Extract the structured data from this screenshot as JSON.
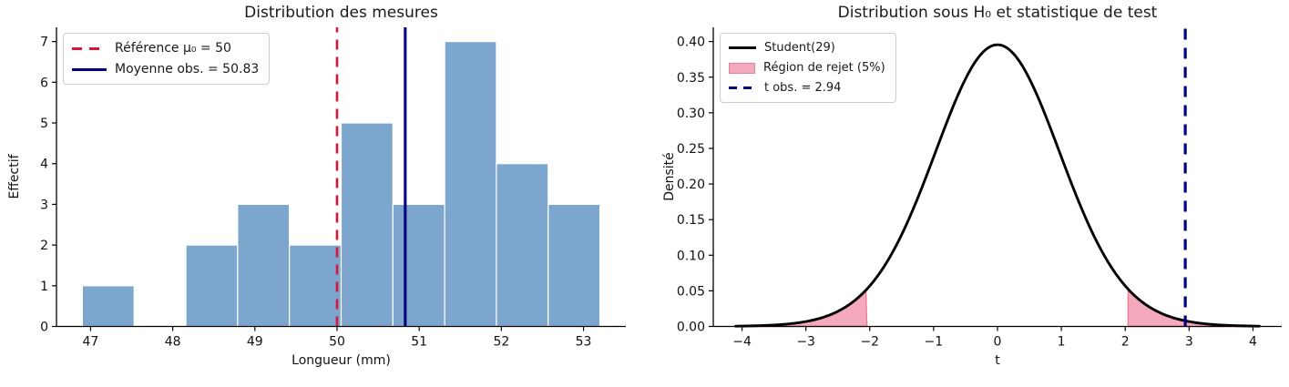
{
  "figure": {
    "background": "#ffffff"
  },
  "chart_data": [
    {
      "type": "bar",
      "subtype": "histogram",
      "title": "Distribution des mesures",
      "xlabel": "Longueur (mm)",
      "ylabel": "Effectif",
      "bins": {
        "start": 46.9,
        "width": 0.63
      },
      "counts": [
        1,
        0,
        2,
        3,
        2,
        5,
        3,
        7,
        4,
        3
      ],
      "xticks": [
        {
          "v": 47,
          "label": "47"
        },
        {
          "v": 48,
          "label": "48"
        },
        {
          "v": 49,
          "label": "49"
        },
        {
          "v": 50,
          "label": "50"
        },
        {
          "v": 51,
          "label": "51"
        },
        {
          "v": 52,
          "label": "52"
        },
        {
          "v": 53,
          "label": "53"
        }
      ],
      "yticks": [
        {
          "v": 0,
          "label": "0"
        },
        {
          "v": 1,
          "label": "1"
        },
        {
          "v": 2,
          "label": "2"
        },
        {
          "v": 3,
          "label": "3"
        },
        {
          "v": 4,
          "label": "4"
        },
        {
          "v": 5,
          "label": "5"
        },
        {
          "v": 6,
          "label": "6"
        },
        {
          "v": 7,
          "label": "7"
        }
      ],
      "xlim": [
        46.585,
        53.515
      ],
      "ylim": [
        0,
        7.35
      ],
      "grid": false,
      "legend_position": "upper left",
      "reference_line": {
        "x": 50,
        "style": "dashed",
        "label": "Référence μ₀ = 50"
      },
      "mean_line": {
        "x": 50.83,
        "style": "solid",
        "label": "Moyenne obs. = 50.83"
      },
      "colors": {
        "bar": "#7ca6cd",
        "bar_edge": "#ffffff",
        "reference": "#dc143c",
        "mean": "#000080"
      }
    },
    {
      "type": "line",
      "subtype": "density",
      "title": "Distribution sous H₀ et statistique de test",
      "xlabel": "t",
      "ylabel": "Densité",
      "distribution": {
        "name": "Student",
        "df": 29,
        "peak_density": 0.3956,
        "legend_label": "Student(29)"
      },
      "curve_x_range": [
        -4.1,
        4.1
      ],
      "rejection": {
        "t_critical": 2.045,
        "alpha_percent": 5,
        "legend_label": "Région de rejet (5%)"
      },
      "t_observed": {
        "value": 2.94,
        "style": "dashed",
        "legend_label": "t obs. = 2.94"
      },
      "xticks": [
        {
          "v": -4,
          "label": "−4"
        },
        {
          "v": -3,
          "label": "−3"
        },
        {
          "v": -2,
          "label": "−2"
        },
        {
          "v": -1,
          "label": "−1"
        },
        {
          "v": 0,
          "label": "0"
        },
        {
          "v": 1,
          "label": "1"
        },
        {
          "v": 2,
          "label": "2"
        },
        {
          "v": 3,
          "label": "3"
        },
        {
          "v": 4,
          "label": "4"
        }
      ],
      "yticks": [
        {
          "v": 0.0,
          "label": "0.00"
        },
        {
          "v": 0.05,
          "label": "0.05"
        },
        {
          "v": 0.1,
          "label": "0.10"
        },
        {
          "v": 0.15,
          "label": "0.15"
        },
        {
          "v": 0.2,
          "label": "0.20"
        },
        {
          "v": 0.25,
          "label": "0.25"
        },
        {
          "v": 0.3,
          "label": "0.30"
        },
        {
          "v": 0.35,
          "label": "0.35"
        },
        {
          "v": 0.4,
          "label": "0.40"
        }
      ],
      "xlim": [
        -4.45,
        4.45
      ],
      "ylim": [
        0,
        0.42
      ],
      "grid": false,
      "legend_position": "upper left",
      "colors": {
        "curve": "#000000",
        "fill": "#f5a9bc",
        "fill_edge": "#e87f9c",
        "t_obs": "#000080"
      }
    }
  ]
}
